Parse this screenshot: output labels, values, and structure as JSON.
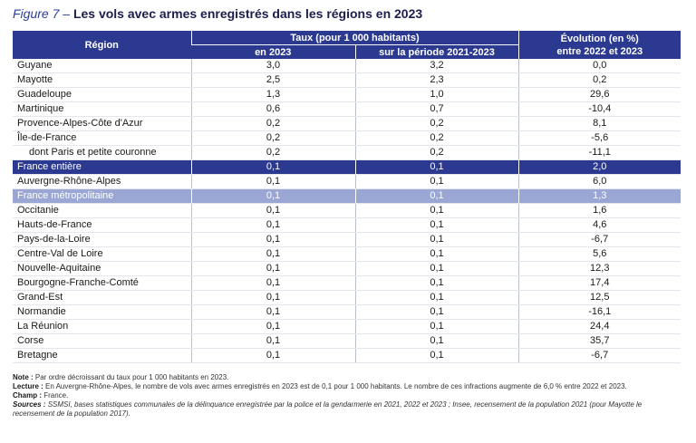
{
  "title": {
    "figure": "Figure 7",
    "dash": "–",
    "text": "Les vols avec armes enregistrés dans les régions en 2023"
  },
  "table": {
    "headers": {
      "region": "Région",
      "taux_group": "Taux (pour 1 000 habitants)",
      "taux_2023": "en 2023",
      "taux_periode": "sur la période 2021-2023",
      "evolution_line1": "Évolution (en %)",
      "evolution_line2": "entre 2022 et 2023"
    },
    "rows": [
      {
        "region": "Guyane",
        "taux_2023": "3,0",
        "taux_periode": "3,2",
        "evolution": "0,0"
      },
      {
        "region": "Mayotte",
        "taux_2023": "2,5",
        "taux_periode": "2,3",
        "evolution": "0,2"
      },
      {
        "region": "Guadeloupe",
        "taux_2023": "1,3",
        "taux_periode": "1,0",
        "evolution": "29,6"
      },
      {
        "region": "Martinique",
        "taux_2023": "0,6",
        "taux_periode": "0,7",
        "evolution": "-10,4"
      },
      {
        "region": "Provence-Alpes-Côte d'Azur",
        "taux_2023": "0,2",
        "taux_periode": "0,2",
        "evolution": "8,1"
      },
      {
        "region": "Île-de-France",
        "taux_2023": "0,2",
        "taux_periode": "0,2",
        "evolution": "-5,6"
      },
      {
        "region": "dont Paris et petite couronne",
        "taux_2023": "0,2",
        "taux_periode": "0,2",
        "evolution": "-11,1"
      },
      {
        "region": "France entière",
        "taux_2023": "0,1",
        "taux_periode": "0,1",
        "evolution": "2,0"
      },
      {
        "region": "Auvergne-Rhône-Alpes",
        "taux_2023": "0,1",
        "taux_periode": "0,1",
        "evolution": "6,0"
      },
      {
        "region": "France métropolitaine",
        "taux_2023": "0,1",
        "taux_periode": "0,1",
        "evolution": "1,3"
      },
      {
        "region": "Occitanie",
        "taux_2023": "0,1",
        "taux_periode": "0,1",
        "evolution": "1,6"
      },
      {
        "region": "Hauts-de-France",
        "taux_2023": "0,1",
        "taux_periode": "0,1",
        "evolution": "4,6"
      },
      {
        "region": "Pays-de-la-Loire",
        "taux_2023": "0,1",
        "taux_periode": "0,1",
        "evolution": "-6,7"
      },
      {
        "region": "Centre-Val de Loire",
        "taux_2023": "0,1",
        "taux_periode": "0,1",
        "evolution": "5,6"
      },
      {
        "region": "Nouvelle-Aquitaine",
        "taux_2023": "0,1",
        "taux_periode": "0,1",
        "evolution": "12,3"
      },
      {
        "region": "Bourgogne-Franche-Comté",
        "taux_2023": "0,1",
        "taux_periode": "0,1",
        "evolution": "17,4"
      },
      {
        "region": "Grand-Est",
        "taux_2023": "0,1",
        "taux_periode": "0,1",
        "evolution": "12,5"
      },
      {
        "region": "Normandie",
        "taux_2023": "0,1",
        "taux_periode": "0,1",
        "evolution": "-16,1"
      },
      {
        "region": "La Réunion",
        "taux_2023": "0,1",
        "taux_periode": "0,1",
        "evolution": "24,4"
      },
      {
        "region": "Corse",
        "taux_2023": "0,1",
        "taux_periode": "0,1",
        "evolution": "35,7"
      },
      {
        "region": "Bretagne",
        "taux_2023": "0,1",
        "taux_periode": "0,1",
        "evolution": "-6,7"
      }
    ]
  },
  "colors": {
    "header": "#2b3990",
    "highlight_dark": "#2b3990",
    "highlight_light": "#9aa6d3"
  },
  "notes": {
    "note_label": "Note :",
    "note_text": " Par ordre décroissant du taux pour 1 000 habitants en 2023.",
    "lecture_label": "Lecture :",
    "lecture_text": " En Auvergne-Rhône-Alpes, le nombre de vols avec armes enregistrés en 2023 est de 0,1 pour 1 000 habitants. Le nombre de ces infractions augmente de 6,0 % entre 2022 et 2023.",
    "champ_label": "Champ :",
    "champ_text": " France.",
    "sources_label": "Sources :",
    "sources_text": " SSMSI, bases statistiques communales de la délinquance enregistrée par la police et la gendarmerie en 2021, 2022 et 2023 ; Insee, recensement de la population 2021 (pour Mayotte le recensement de la population 2017)."
  }
}
